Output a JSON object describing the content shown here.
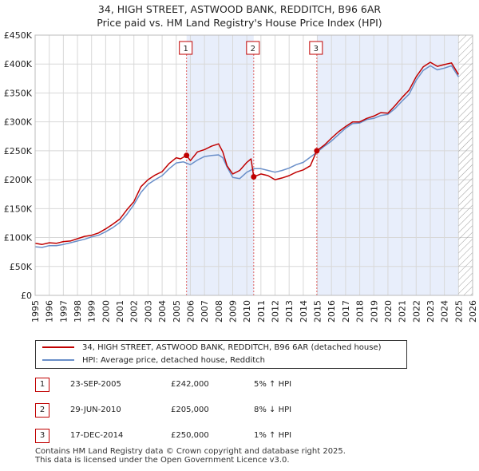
{
  "title": {
    "line1": "34, HIGH STREET, ASTWOOD BANK, REDDITCH, B96 6AR",
    "line2": "Price paid vs. HM Land Registry's House Price Index (HPI)"
  },
  "colors": {
    "price_line": "#c00000",
    "hpi_line": "#6a8fc9",
    "shade": "#e8eefb",
    "grid": "#d8d8d8",
    "marker_line": "#e06060"
  },
  "chart_data": {
    "type": "line",
    "title": "Price paid vs. HM Land Registry's House Price Index (HPI)",
    "xlabel": "",
    "ylabel": "",
    "xlim": [
      1995.0,
      2026.0
    ],
    "ylim": [
      0,
      450000
    ],
    "x_ticks": [
      "1995",
      "1996",
      "1997",
      "1998",
      "1999",
      "2000",
      "2001",
      "2002",
      "2003",
      "2004",
      "2005",
      "2006",
      "2007",
      "2008",
      "2009",
      "2010",
      "2011",
      "2012",
      "2013",
      "2014",
      "2015",
      "2016",
      "2017",
      "2018",
      "2019",
      "2020",
      "2021",
      "2022",
      "2023",
      "2024",
      "2025",
      "2026"
    ],
    "y_ticks": [
      {
        "value": 0,
        "label": "£0"
      },
      {
        "value": 50000,
        "label": "£50K"
      },
      {
        "value": 100000,
        "label": "£100K"
      },
      {
        "value": 150000,
        "label": "£150K"
      },
      {
        "value": 200000,
        "label": "£200K"
      },
      {
        "value": 250000,
        "label": "£250K"
      },
      {
        "value": 300000,
        "label": "£300K"
      },
      {
        "value": 350000,
        "label": "£350K"
      },
      {
        "value": 400000,
        "label": "£400K"
      },
      {
        "value": 450000,
        "label": "£450K"
      }
    ],
    "shaded_ranges": [
      [
        2005.73,
        2010.49
      ],
      [
        2014.96,
        2025.0
      ]
    ],
    "future_hatch_from": 2025.0,
    "series": [
      {
        "name": "34, HIGH STREET, ASTWOOD BANK, REDDITCH, B96 6AR (detached house)",
        "x": [
          1995.0,
          1995.5,
          1996.0,
          1996.5,
          1997.0,
          1997.5,
          1998.0,
          1998.5,
          1999.0,
          1999.5,
          2000.0,
          2000.5,
          2001.0,
          2001.5,
          2002.0,
          2002.5,
          2003.0,
          2003.5,
          2004.0,
          2004.5,
          2005.0,
          2005.3,
          2005.73,
          2006.0,
          2006.5,
          2007.0,
          2007.5,
          2008.0,
          2008.3,
          2008.6,
          2009.0,
          2009.5,
          2010.0,
          2010.3,
          2010.49,
          2011.0,
          2011.5,
          2012.0,
          2012.5,
          2013.0,
          2013.5,
          2014.0,
          2014.5,
          2014.96,
          2015.5,
          2016.0,
          2016.5,
          2017.0,
          2017.5,
          2018.0,
          2018.5,
          2019.0,
          2019.5,
          2020.0,
          2020.5,
          2021.0,
          2021.5,
          2022.0,
          2022.5,
          2023.0,
          2023.5,
          2024.0,
          2024.5,
          2025.0
        ],
        "y": [
          90000,
          88000,
          91000,
          90000,
          93000,
          94000,
          98000,
          102000,
          104000,
          108000,
          115000,
          123000,
          132000,
          148000,
          162000,
          188000,
          200000,
          208000,
          214000,
          228000,
          238000,
          236000,
          242000,
          233000,
          248000,
          252000,
          258000,
          262000,
          248000,
          224000,
          210000,
          216000,
          230000,
          236000,
          205000,
          210000,
          207000,
          200000,
          203000,
          207000,
          213000,
          217000,
          224000,
          250000,
          260000,
          272000,
          283000,
          292000,
          300000,
          300000,
          306000,
          310000,
          316000,
          315000,
          328000,
          342000,
          355000,
          378000,
          395000,
          403000,
          396000,
          399000,
          402000,
          382000
        ]
      },
      {
        "name": "HPI: Average price, detached house, Redditch",
        "x": [
          1995.0,
          1995.5,
          1996.0,
          1996.5,
          1997.0,
          1997.5,
          1998.0,
          1998.5,
          1999.0,
          1999.5,
          2000.0,
          2000.5,
          2001.0,
          2001.5,
          2002.0,
          2002.5,
          2003.0,
          2003.5,
          2004.0,
          2004.5,
          2005.0,
          2005.5,
          2006.0,
          2006.5,
          2007.0,
          2007.5,
          2008.0,
          2008.3,
          2008.6,
          2009.0,
          2009.5,
          2010.0,
          2010.5,
          2011.0,
          2011.5,
          2012.0,
          2012.5,
          2013.0,
          2013.5,
          2014.0,
          2014.5,
          2015.0,
          2015.5,
          2016.0,
          2016.5,
          2017.0,
          2017.5,
          2018.0,
          2018.5,
          2019.0,
          2019.5,
          2020.0,
          2020.5,
          2021.0,
          2021.5,
          2022.0,
          2022.5,
          2023.0,
          2023.5,
          2024.0,
          2024.5,
          2025.0
        ],
        "y": [
          84000,
          83000,
          86000,
          86000,
          88000,
          91000,
          94000,
          97000,
          101000,
          104000,
          110000,
          117000,
          126000,
          140000,
          157000,
          178000,
          192000,
          200000,
          207000,
          219000,
          229000,
          231000,
          226000,
          234000,
          240000,
          242000,
          243000,
          238000,
          222000,
          204000,
          202000,
          213000,
          219000,
          219000,
          216000,
          213000,
          216000,
          220000,
          226000,
          230000,
          239000,
          248000,
          258000,
          267000,
          278000,
          289000,
          297000,
          298000,
          304000,
          306000,
          311000,
          313000,
          323000,
          336000,
          348000,
          372000,
          389000,
          397000,
          390000,
          393000,
          397000,
          378000
        ]
      }
    ],
    "sales": [
      {
        "num": "1",
        "x": 2005.73,
        "y": 242000
      },
      {
        "num": "2",
        "x": 2010.49,
        "y": 205000
      },
      {
        "num": "3",
        "x": 2014.96,
        "y": 250000
      }
    ]
  },
  "legend": {
    "price_label": "34, HIGH STREET, ASTWOOD BANK, REDDITCH, B96 6AR (detached house)",
    "hpi_label": "HPI: Average price, detached house, Redditch"
  },
  "sales_table": [
    {
      "num": "1",
      "date": "23-SEP-2005",
      "price": "£242,000",
      "hpi": "5% ↑ HPI"
    },
    {
      "num": "2",
      "date": "29-JUN-2010",
      "price": "£205,000",
      "hpi": "8% ↓ HPI"
    },
    {
      "num": "3",
      "date": "17-DEC-2014",
      "price": "£250,000",
      "hpi": "1% ↑ HPI"
    }
  ],
  "footer": {
    "line1": "Contains HM Land Registry data © Crown copyright and database right 2025.",
    "line2": "This data is licensed under the Open Government Licence v3.0."
  }
}
